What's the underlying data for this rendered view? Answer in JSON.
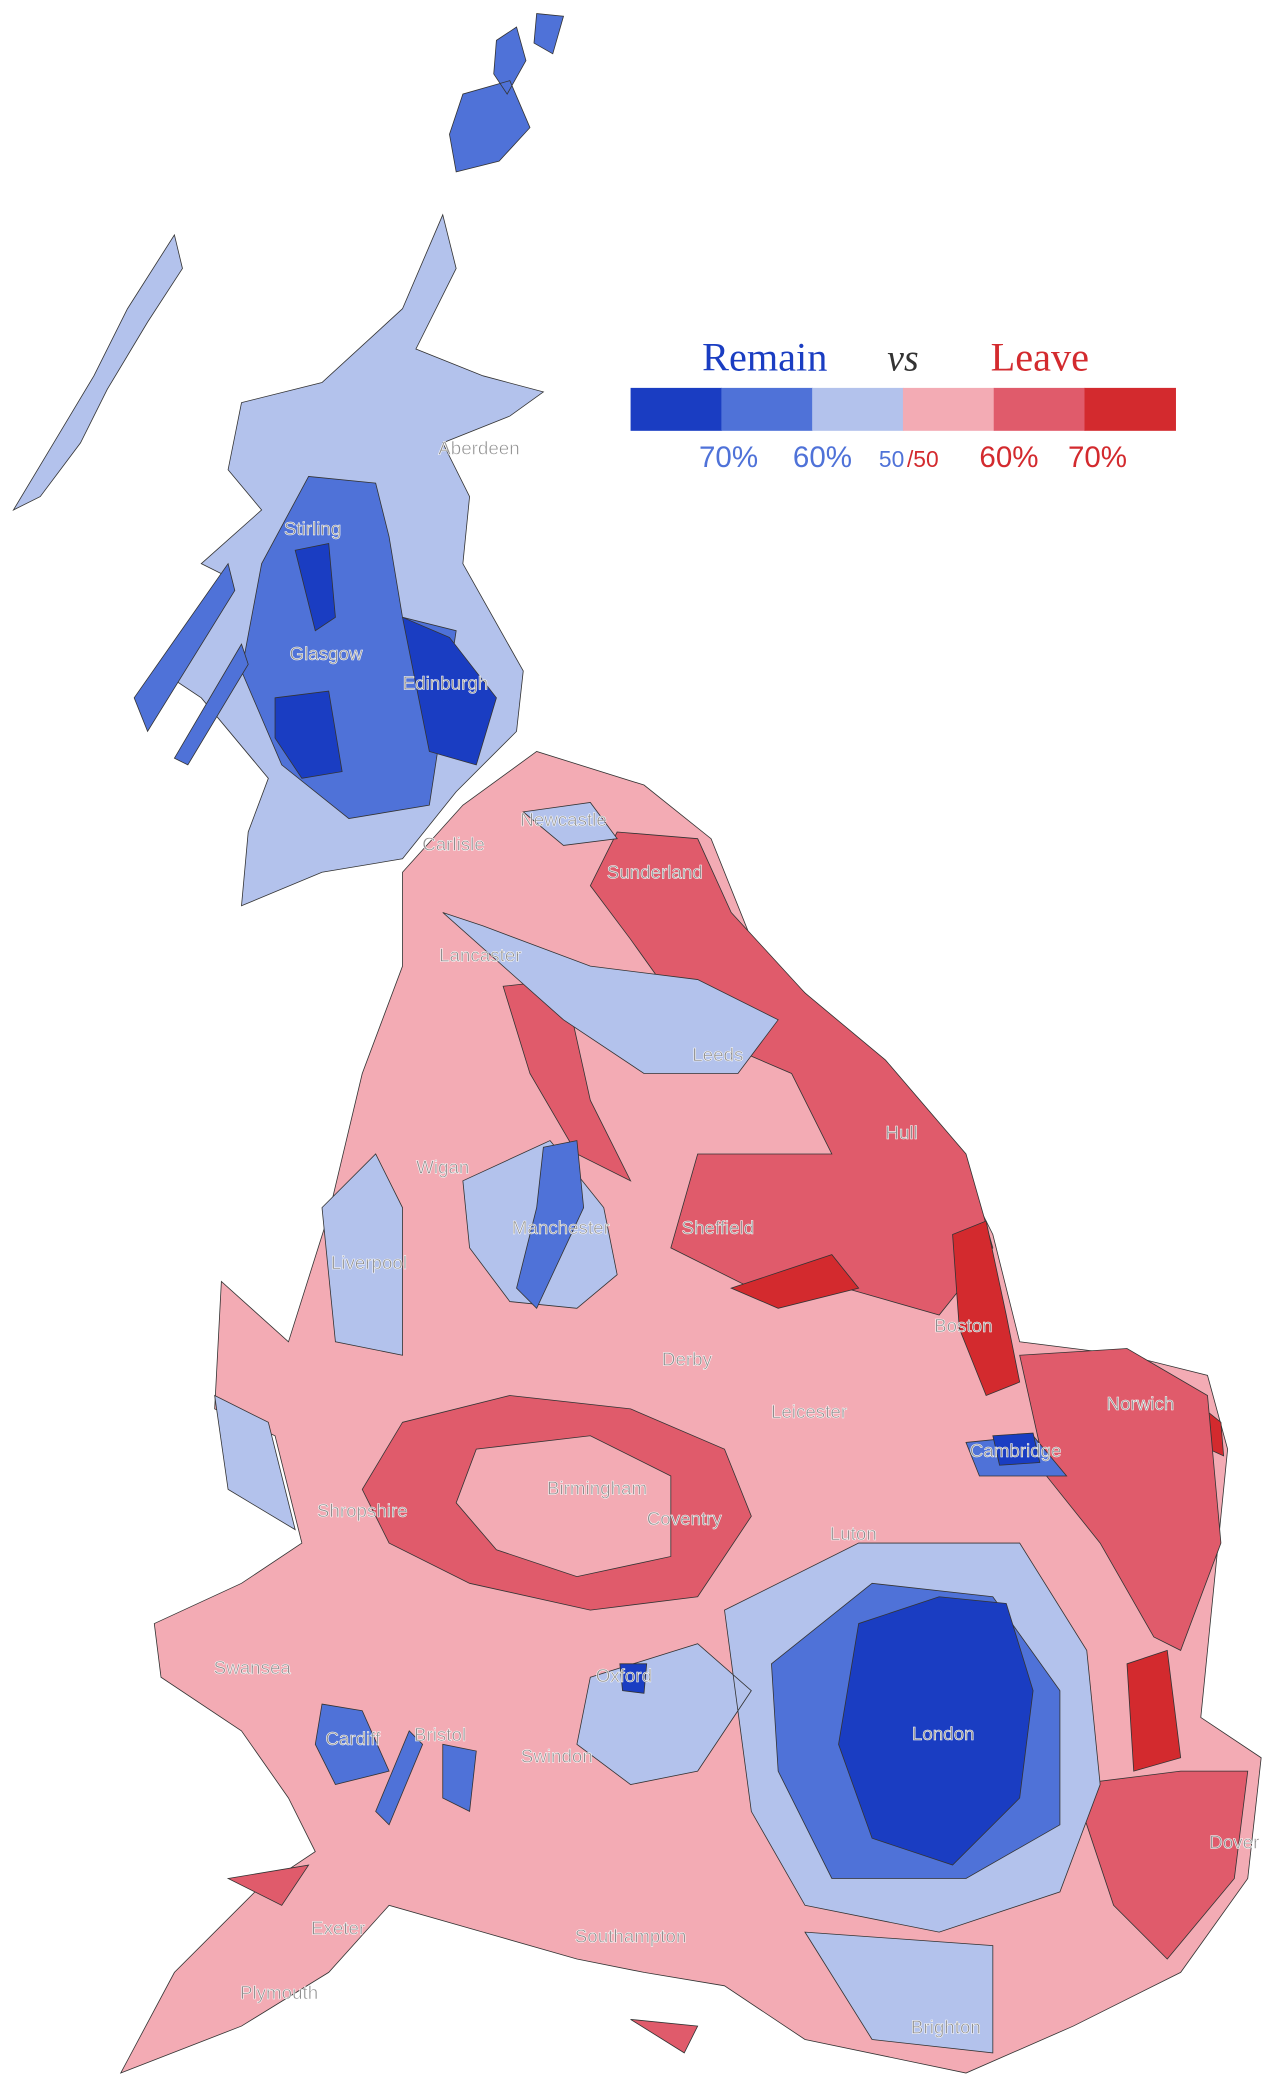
{
  "legend": {
    "remain": "Remain",
    "vs": "vs",
    "leave": "Leave",
    "colors": [
      "#1a3dc2",
      "#4f72d8",
      "#b3c2ec",
      "#f3abb4",
      "#e05b6b",
      "#d32a2e"
    ],
    "labels": [
      "70%",
      "60%",
      "50",
      "/50",
      "60%",
      "70%"
    ]
  },
  "cities": [
    "Aberdeen",
    "Stirling",
    "Glasgow",
    "Edinburgh",
    "Newcastle",
    "Carlisle",
    "Sunderland",
    "Lancaster",
    "Leeds",
    "Hull",
    "Wigan",
    "Manchester",
    "Sheffield",
    "Liverpool",
    "Boston",
    "Derby",
    "Norwich",
    "Leicester",
    "Cambridge",
    "Birmingham",
    "Shropshire",
    "Coventry",
    "Luton",
    "Swansea",
    "Oxford",
    "Cardiff",
    "Bristol",
    "London",
    "Swindon",
    "Dover",
    "Exeter",
    "Southampton",
    "Plymouth",
    "Brighton"
  ]
}
